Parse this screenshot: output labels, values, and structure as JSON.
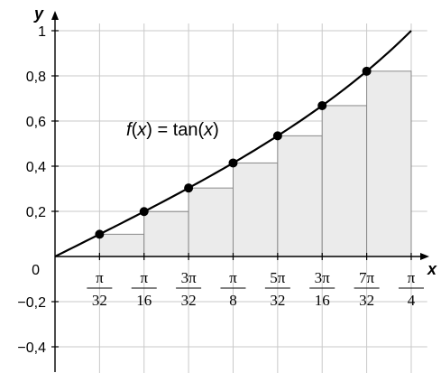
{
  "chart_data": {
    "type": "bar",
    "title": "",
    "xlabel": "x",
    "ylabel": "y",
    "annotation": {
      "prefix_italic": "f",
      "paren_open": "(",
      "arg_italic": "x",
      "middle": ") = tan(",
      "arg2_italic": "x",
      "suffix": ")"
    },
    "xlim": [
      0,
      0.8247
    ],
    "ylim": [
      -0.5,
      1.08
    ],
    "grid": true,
    "x_ticks": [
      {
        "x": 0.09817,
        "num": "π",
        "den": "32"
      },
      {
        "x": 0.19635,
        "num": "π",
        "den": "16"
      },
      {
        "x": 0.29452,
        "num": "3π",
        "den": "32"
      },
      {
        "x": 0.3927,
        "num": "π",
        "den": "8"
      },
      {
        "x": 0.49087,
        "num": "5π",
        "den": "32"
      },
      {
        "x": 0.58905,
        "num": "3π",
        "den": "16"
      },
      {
        "x": 0.68722,
        "num": "7π",
        "den": "32"
      },
      {
        "x": 0.7854,
        "num": "π",
        "den": "4"
      }
    ],
    "y_ticks": [
      {
        "y": -0.4,
        "label": "−0,4"
      },
      {
        "y": -0.2,
        "label": "−0,2"
      },
      {
        "y": 0.2,
        "label": "0,2"
      },
      {
        "y": 0.4,
        "label": "0,4"
      },
      {
        "y": 0.6,
        "label": "0,6"
      },
      {
        "y": 0.8,
        "label": "0,8"
      },
      {
        "y": 1.0,
        "label": "1"
      }
    ],
    "origin_label": "0",
    "bars": [
      {
        "x0": 0.09817,
        "x1": 0.19635,
        "height": 0.0985
      },
      {
        "x0": 0.19635,
        "x1": 0.29452,
        "height": 0.1989
      },
      {
        "x0": 0.29452,
        "x1": 0.3927,
        "height": 0.3033
      },
      {
        "x0": 0.3927,
        "x1": 0.49087,
        "height": 0.4142
      },
      {
        "x0": 0.49087,
        "x1": 0.58905,
        "height": 0.5345
      },
      {
        "x0": 0.58905,
        "x1": 0.68722,
        "height": 0.6682
      },
      {
        "x0": 0.68722,
        "x1": 0.7854,
        "height": 0.8207
      }
    ],
    "points": [
      {
        "x": 0.09817,
        "y": 0.0985
      },
      {
        "x": 0.19635,
        "y": 0.1989
      },
      {
        "x": 0.29452,
        "y": 0.3033
      },
      {
        "x": 0.3927,
        "y": 0.4142
      },
      {
        "x": 0.49087,
        "y": 0.5345
      },
      {
        "x": 0.58905,
        "y": 0.6682
      },
      {
        "x": 0.68722,
        "y": 0.8207
      },
      {
        "x": 0.7854,
        "y": 1.0
      }
    ],
    "curve": {
      "function": "tan",
      "x_from": 0,
      "x_to": 0.7854
    }
  }
}
